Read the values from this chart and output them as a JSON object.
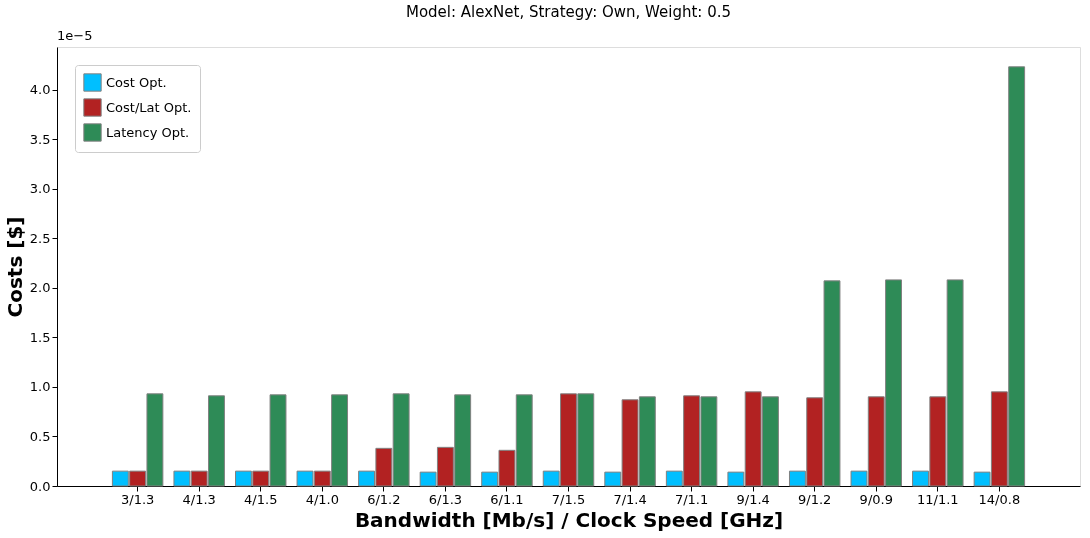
{
  "chart_data": {
    "type": "bar",
    "title": "Model: AlexNet, Strategy: Own, Weight: 0.5",
    "xlabel": "Bandwidth [Mb/s] / Clock Speed [GHz]",
    "ylabel": "Costs [$]",
    "categories": [
      "3/1.3",
      "4/1.3",
      "4/1.5",
      "4/1.0",
      "6/1.2",
      "6/1.3",
      "6/1.1",
      "7/1.5",
      "7/1.4",
      "7/1.1",
      "9/1.4",
      "9/1.2",
      "9/0.9",
      "11/1.1",
      "14/0.8"
    ],
    "series": [
      {
        "name": "Cost Opt.",
        "color": "#00bfff",
        "values": [
          0.15,
          0.15,
          0.15,
          0.15,
          0.15,
          0.14,
          0.14,
          0.15,
          0.14,
          0.15,
          0.14,
          0.15,
          0.15,
          0.15,
          0.14
        ]
      },
      {
        "name": "Cost/Lat Opt.",
        "color": "#b22222",
        "values": [
          0.15,
          0.15,
          0.15,
          0.15,
          0.38,
          0.39,
          0.36,
          0.93,
          0.87,
          0.91,
          0.95,
          0.89,
          0.9,
          0.9,
          0.95
        ]
      },
      {
        "name": "Latency Opt.",
        "color": "#2e8b57",
        "values": [
          0.93,
          0.91,
          0.92,
          0.92,
          0.93,
          0.92,
          0.92,
          0.93,
          0.9,
          0.9,
          0.9,
          2.07,
          2.08,
          2.08,
          4.23
        ]
      }
    ],
    "ylim": [
      0,
      4.43
    ],
    "yticks": [
      {
        "value": 0,
        "label": "0.0"
      },
      0.5,
      {
        "value": 1,
        "label": "1.0"
      },
      1.5,
      {
        "value": 2,
        "label": "2.0"
      },
      2.5,
      {
        "value": 3,
        "label": "3.0"
      },
      3.5,
      {
        "value": 4,
        "label": "4.0"
      }
    ],
    "annotations": [
      "1e−5"
    ],
    "legend": "top left",
    "grid": false
  }
}
